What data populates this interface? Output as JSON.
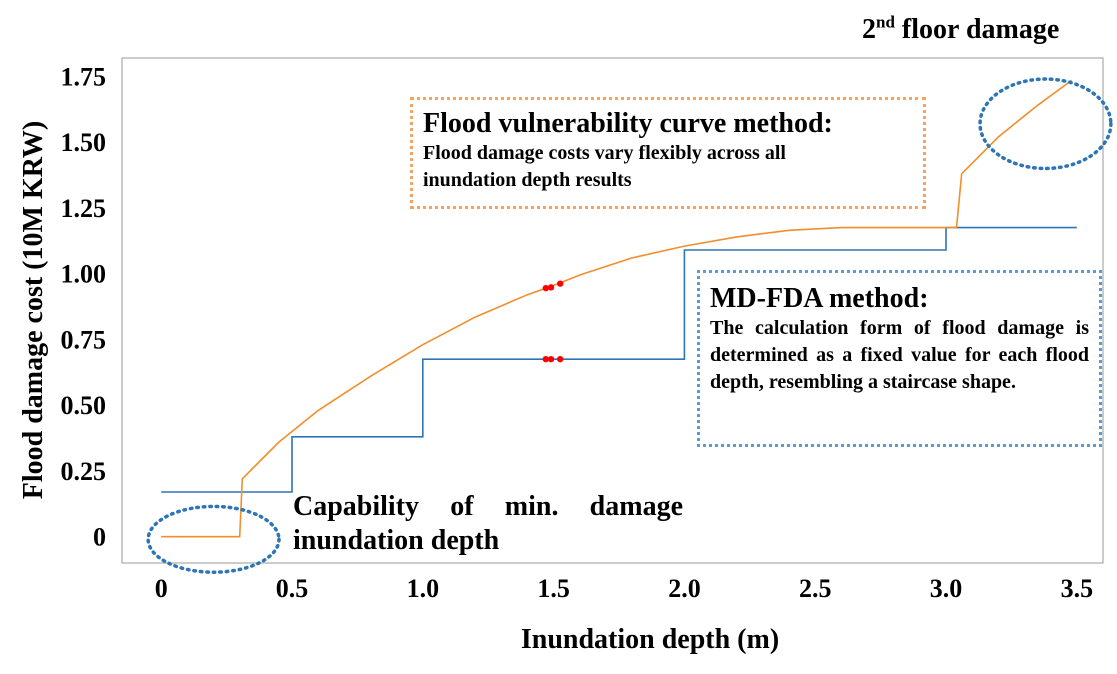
{
  "chart_data": {
    "type": "line",
    "xlabel": "Inundation depth (m)",
    "ylabel": "Flood damage cost (10M KRW)",
    "xlim": [
      -0.15,
      3.6
    ],
    "ylim": [
      -0.1,
      1.82
    ],
    "x_ticks": [
      "0",
      "0.5",
      "1.0",
      "1.5",
      "2.0",
      "2.5",
      "3.0",
      "3.5"
    ],
    "y_ticks": [
      "0",
      "0.25",
      "0.50",
      "0.75",
      "1.00",
      "1.25",
      "1.50",
      "1.75"
    ],
    "grid": false,
    "series": [
      {
        "color": "#2e75b6",
        "x": [
          0,
          0.5,
          0.5,
          1.0,
          1.0,
          2.0,
          2.0,
          3.0,
          3.0,
          3.5
        ],
        "y": [
          0.17,
          0.17,
          0.38,
          0.38,
          0.675,
          0.675,
          1.09,
          1.09,
          1.175,
          1.175
        ]
      },
      {
        "color": "#f28e2b",
        "x": [
          0,
          0.3,
          0.31,
          0.45,
          0.6,
          0.8,
          1.0,
          1.2,
          1.4,
          1.5,
          1.6,
          1.8,
          2.0,
          2.2,
          2.4,
          2.6,
          2.8,
          3.0,
          3.04,
          3.06,
          3.2,
          3.35,
          3.48
        ],
        "y": [
          0,
          0,
          0.22,
          0.36,
          0.48,
          0.61,
          0.73,
          0.835,
          0.92,
          0.955,
          0.995,
          1.06,
          1.105,
          1.14,
          1.165,
          1.175,
          1.175,
          1.175,
          1.175,
          1.38,
          1.52,
          1.64,
          1.735
        ]
      }
    ],
    "markers": {
      "color": "#ff0000",
      "points": [
        {
          "x": 1.47,
          "y": 0.945
        },
        {
          "x": 1.49,
          "y": 0.948
        },
        {
          "x": 1.525,
          "y": 0.962
        },
        {
          "x": 1.47,
          "y": 0.675
        },
        {
          "x": 1.49,
          "y": 0.675
        },
        {
          "x": 1.525,
          "y": 0.675
        }
      ]
    },
    "ellipses": [
      {
        "cx": 0.2,
        "cy": -0.01,
        "rx": 0.25,
        "ry": 0.125,
        "color": "#2e75b6"
      },
      {
        "cx": 3.38,
        "cy": 1.57,
        "rx": 0.25,
        "ry": 0.17,
        "color": "#2e75b6"
      }
    ]
  },
  "annotations": {
    "fvc_title": "Flood vulnerability curve method:",
    "fvc_body": "Flood damage costs vary flexibly across all inundation depth results",
    "mdfda_title": "MD-FDA method:",
    "mdfda_body": "The calculation form of flood damage is determined as a fixed value for each flood depth, resembling a staircase shape.",
    "second_floor_num": "2",
    "second_floor_sup": "nd",
    "second_floor_rest": " floor damage",
    "capability": "Capability of min. damage inundation depth"
  }
}
